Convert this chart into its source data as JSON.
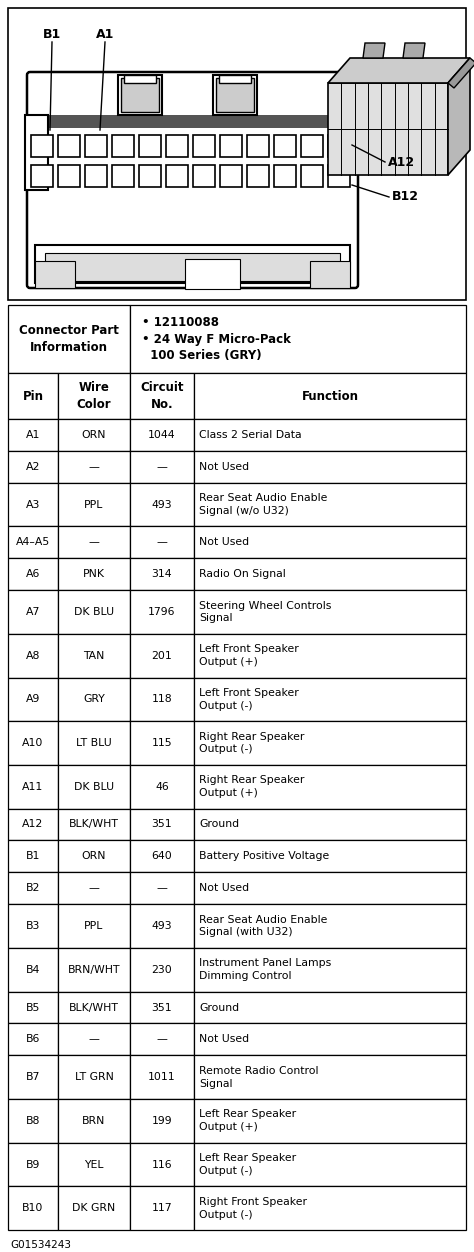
{
  "connector_part_info_left": "Connector Part\nInformation",
  "connector_part_info_right": "• 12110088\n• 24 Way F Micro-Pack\n  100 Series (GRY)",
  "col_headers": [
    "Pin",
    "Wire\nColor",
    "Circuit\nNo.",
    "Function"
  ],
  "rows": [
    [
      "A1",
      "ORN",
      "1044",
      "Class 2 Serial Data"
    ],
    [
      "A2",
      "—",
      "—",
      "Not Used"
    ],
    [
      "A3",
      "PPL",
      "493",
      "Rear Seat Audio Enable\nSignal (w/o U32)"
    ],
    [
      "A4–A5",
      "—",
      "—",
      "Not Used"
    ],
    [
      "A6",
      "PNK",
      "314",
      "Radio On Signal"
    ],
    [
      "A7",
      "DK BLU",
      "1796",
      "Steering Wheel Controls\nSignal"
    ],
    [
      "A8",
      "TAN",
      "201",
      "Left Front Speaker\nOutput (+)"
    ],
    [
      "A9",
      "GRY",
      "118",
      "Left Front Speaker\nOutput (-)"
    ],
    [
      "A10",
      "LT BLU",
      "115",
      "Right Rear Speaker\nOutput (-)"
    ],
    [
      "A11",
      "DK BLU",
      "46",
      "Right Rear Speaker\nOutput (+)"
    ],
    [
      "A12",
      "BLK/WHT",
      "351",
      "Ground"
    ],
    [
      "B1",
      "ORN",
      "640",
      "Battery Positive Voltage"
    ],
    [
      "B2",
      "—",
      "—",
      "Not Used"
    ],
    [
      "B3",
      "PPL",
      "493",
      "Rear Seat Audio Enable\nSignal (with U32)"
    ],
    [
      "B4",
      "BRN/WHT",
      "230",
      "Instrument Panel Lamps\nDimming Control"
    ],
    [
      "B5",
      "BLK/WHT",
      "351",
      "Ground"
    ],
    [
      "B6",
      "—",
      "—",
      "Not Used"
    ],
    [
      "B7",
      "LT GRN",
      "1011",
      "Remote Radio Control\nSignal"
    ],
    [
      "B8",
      "BRN",
      "199",
      "Left Rear Speaker\nOutput (+)"
    ],
    [
      "B9",
      "YEL",
      "116",
      "Left Rear Speaker\nOutput (-)"
    ],
    [
      "B10",
      "DK GRN",
      "117",
      "Right Front Speaker\nOutput (-)"
    ]
  ],
  "footer_label": "G01534243",
  "bg_color": "#ffffff",
  "line_color": "#000000"
}
